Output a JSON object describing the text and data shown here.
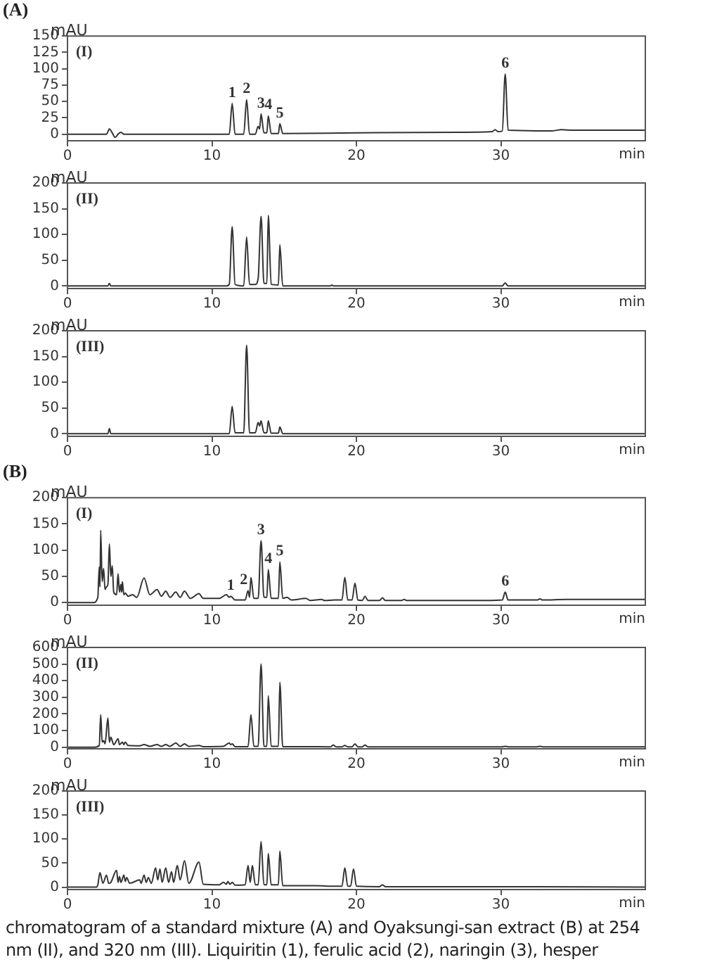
{
  "chart_data": [
    {
      "type": "line",
      "title": "(A)",
      "xlabel": "min",
      "ylabel": "mAU",
      "annotations": [
        "(I)",
        {
          "text": "1",
          "x": 11.4,
          "y": 47
        },
        {
          "text": "2",
          "x": 12.4,
          "y": 53
        },
        {
          "text": "3",
          "x": 13.4,
          "y": 31
        },
        {
          "text": "4",
          "x": 13.9,
          "y": 28
        },
        {
          "text": "5",
          "x": 14.7,
          "y": 16
        },
        {
          "text": "6",
          "x": 30.3,
          "y": 92
        }
      ],
      "xlim": [
        0,
        40
      ],
      "xticks": [
        0,
        10,
        20,
        30
      ],
      "ylim": [
        -10,
        150
      ],
      "yticks": [
        0,
        25,
        50,
        75,
        100,
        125,
        150
      ],
      "grid": false,
      "legend": false,
      "marker": "none",
      "line_style": "solid",
      "series": [
        {
          "color": "#333333",
          "x": [
            0,
            2.7,
            2.9,
            3.1,
            3.3,
            3.5,
            3.7,
            3.9,
            11.2,
            11.4,
            11.6,
            12.2,
            12.4,
            12.6,
            13.0,
            13.2,
            13.3,
            13.4,
            13.6,
            13.8,
            13.9,
            14.1,
            14.6,
            14.7,
            14.9,
            20,
            27,
            29.4,
            29.6,
            29.8,
            30.1,
            30.3,
            30.5,
            33.5,
            34.2,
            35,
            40
          ],
          "values": [
            0,
            0,
            8,
            2,
            -5,
            0,
            3,
            0,
            0,
            47,
            0,
            0,
            53,
            0,
            0,
            12,
            8,
            31,
            2,
            2,
            28,
            1,
            1,
            16,
            1,
            2,
            3,
            4,
            7,
            4,
            5,
            92,
            6,
            5,
            7,
            6,
            6
          ]
        }
      ]
    },
    {
      "type": "line",
      "xlabel": "min",
      "ylabel": "mAU",
      "annotations": [
        "(II)"
      ],
      "xlim": [
        0,
        40
      ],
      "xticks": [
        0,
        10,
        20,
        30
      ],
      "ylim": [
        -5,
        200
      ],
      "yticks": [
        0,
        50,
        100,
        150,
        200
      ],
      "grid": false,
      "legend": false,
      "marker": "none",
      "line_style": "solid",
      "series": [
        {
          "color": "#333333",
          "x": [
            0,
            2.8,
            2.9,
            3.0,
            11.0,
            11.2,
            11.4,
            11.6,
            12.2,
            12.4,
            12.6,
            13.0,
            13.2,
            13.4,
            13.6,
            13.8,
            13.9,
            14.1,
            14.6,
            14.7,
            14.9,
            18.2,
            18.3,
            18.4,
            30.1,
            30.3,
            30.5,
            40
          ],
          "values": [
            0,
            0,
            5,
            0,
            0,
            3,
            115,
            3,
            0,
            95,
            3,
            3,
            15,
            135,
            5,
            5,
            137,
            3,
            2,
            80,
            0,
            0,
            2,
            0,
            0,
            6,
            0,
            0
          ]
        }
      ]
    },
    {
      "type": "line",
      "xlabel": "min",
      "ylabel": "mAU",
      "annotations": [
        "(III)"
      ],
      "xlim": [
        0,
        40
      ],
      "xticks": [
        0,
        10,
        20,
        30
      ],
      "ylim": [
        -5,
        200
      ],
      "yticks": [
        0,
        50,
        100,
        150,
        200
      ],
      "grid": false,
      "legend": false,
      "marker": "none",
      "line_style": "solid",
      "series": [
        {
          "color": "#333333",
          "x": [
            0,
            2.8,
            2.9,
            3.0,
            11.2,
            11.4,
            11.6,
            12.2,
            12.4,
            12.6,
            13.0,
            13.2,
            13.3,
            13.4,
            13.6,
            13.8,
            13.9,
            14.1,
            14.6,
            14.7,
            14.9,
            40
          ],
          "values": [
            0,
            0,
            10,
            0,
            0,
            53,
            2,
            2,
            172,
            2,
            2,
            22,
            15,
            25,
            2,
            2,
            25,
            1,
            1,
            13,
            0,
            0
          ]
        }
      ]
    },
    {
      "type": "line",
      "title": "(B)",
      "xlabel": "min",
      "ylabel": "mAU",
      "annotations": [
        "(I)",
        {
          "text": "1",
          "x": 11.3,
          "y": 12
        },
        {
          "text": "2",
          "x": 12.2,
          "y": 23
        },
        {
          "text": "3",
          "x": 13.4,
          "y": 118
        },
        {
          "text": "4",
          "x": 13.9,
          "y": 63
        },
        {
          "text": "5",
          "x": 14.7,
          "y": 78
        },
        {
          "text": "6",
          "x": 30.3,
          "y": 20
        }
      ],
      "xlim": [
        0,
        40
      ],
      "xticks": [
        0,
        10,
        20,
        30
      ],
      "ylim": [
        -5,
        200
      ],
      "yticks": [
        0,
        50,
        100,
        150,
        200
      ],
      "grid": false,
      "legend": false,
      "marker": "none",
      "line_style": "solid",
      "series": [
        {
          "color": "#333333",
          "x": [
            0,
            1.8,
            2.1,
            2.2,
            2.25,
            2.3,
            2.4,
            2.5,
            2.6,
            2.7,
            2.8,
            2.9,
            3.0,
            3.1,
            3.2,
            3.4,
            3.5,
            3.6,
            3.7,
            3.75,
            3.8,
            3.9,
            4.0,
            4.2,
            4.5,
            4.8,
            5.3,
            5.7,
            6.2,
            6.5,
            6.8,
            7.1,
            7.5,
            7.8,
            8.1,
            8.5,
            9.1,
            9.4,
            10.5,
            11.0,
            11.2,
            11.3,
            11.6,
            12.3,
            12.5,
            12.6,
            12.7,
            12.9,
            13.2,
            13.4,
            13.6,
            13.8,
            13.9,
            14.1,
            14.6,
            14.7,
            14.9,
            15.2,
            15.5,
            16.5,
            16.8,
            17.6,
            17.8,
            18.5,
            19.0,
            19.2,
            19.4,
            19.7,
            19.9,
            20.1,
            20.4,
            20.6,
            20.8,
            21.6,
            21.8,
            22.0,
            23.1,
            23.3,
            23.5,
            29,
            30.1,
            30.3,
            30.5,
            32.5,
            32.7,
            32.9,
            34.5,
            40
          ],
          "values": [
            0,
            0,
            10,
            68,
            30,
            138,
            40,
            65,
            25,
            30,
            35,
            112,
            50,
            70,
            20,
            15,
            55,
            20,
            35,
            20,
            40,
            15,
            18,
            12,
            15,
            10,
            47,
            15,
            25,
            12,
            22,
            10,
            20,
            10,
            22,
            8,
            17,
            8,
            8,
            15,
            10,
            12,
            5,
            5,
            23,
            10,
            48,
            8,
            8,
            118,
            10,
            10,
            63,
            8,
            8,
            78,
            8,
            10,
            5,
            8,
            4,
            6,
            4,
            5,
            5,
            48,
            5,
            5,
            37,
            5,
            4,
            12,
            4,
            4,
            9,
            4,
            4,
            6,
            4,
            4,
            5,
            20,
            5,
            5,
            7,
            5,
            6,
            6
          ]
        }
      ]
    },
    {
      "type": "line",
      "xlabel": "min",
      "ylabel": "mAU",
      "annotations": [
        "(II)"
      ],
      "xlim": [
        0,
        40
      ],
      "xticks": [
        0,
        10,
        20,
        30
      ],
      "ylim": [
        -10,
        600
      ],
      "yticks": [
        0,
        100,
        200,
        300,
        400,
        500,
        600
      ],
      "grid": false,
      "legend": false,
      "marker": "none",
      "line_style": "solid",
      "series": [
        {
          "color": "#333333",
          "x": [
            0,
            1.9,
            2.2,
            2.3,
            2.4,
            2.5,
            2.6,
            2.8,
            2.9,
            3.0,
            3.2,
            3.5,
            3.6,
            3.8,
            3.9,
            4.0,
            4.2,
            5.0,
            5.3,
            5.7,
            6.2,
            6.5,
            6.8,
            7.1,
            7.5,
            7.8,
            8.1,
            8.4,
            9.1,
            9.4,
            10.8,
            11.2,
            11.3,
            11.4,
            11.6,
            12.5,
            12.7,
            12.9,
            13.2,
            13.4,
            13.6,
            13.8,
            13.9,
            14.1,
            14.6,
            14.7,
            14.9,
            16.5,
            18.2,
            18.4,
            18.6,
            19.0,
            19.2,
            19.4,
            19.7,
            19.9,
            20.1,
            20.4,
            20.6,
            20.8,
            30.1,
            30.3,
            30.5,
            32.5,
            32.7,
            32.9,
            40
          ],
          "values": [
            0,
            0,
            10,
            195,
            30,
            40,
            20,
            175,
            30,
            60,
            15,
            50,
            15,
            30,
            15,
            30,
            10,
            8,
            15,
            5,
            15,
            5,
            15,
            5,
            25,
            5,
            20,
            5,
            10,
            3,
            5,
            25,
            15,
            20,
            3,
            3,
            195,
            5,
            5,
            500,
            5,
            5,
            310,
            5,
            5,
            390,
            3,
            3,
            2,
            12,
            2,
            2,
            10,
            2,
            2,
            20,
            2,
            2,
            12,
            2,
            2,
            5,
            2,
            2,
            5,
            2,
            2
          ]
        }
      ]
    },
    {
      "type": "line",
      "xlabel": "min",
      "ylabel": "mAU",
      "annotations": [
        "(III)",
        "chromatogram of a standard mixture (A) and Oyaksungi-san extract (B) at 254",
        "nm (II), and 320 nm (III). Liquiritin (1), ferulic acid (2), naringin (3), hesper"
      ],
      "xlim": [
        0,
        40
      ],
      "xticks": [
        0,
        10,
        20,
        30
      ],
      "ylim": [
        -5,
        200
      ],
      "yticks": [
        0,
        50,
        100,
        150,
        200
      ],
      "grid": false,
      "legend": false,
      "marker": "none",
      "line_style": "solid",
      "series": [
        {
          "color": "#333333",
          "x": [
            0,
            2.0,
            2.1,
            2.25,
            2.45,
            2.7,
            2.85,
            3.0,
            3.4,
            3.5,
            3.6,
            3.7,
            3.9,
            4.0,
            4.1,
            4.3,
            5.0,
            5.1,
            5.3,
            5.45,
            5.6,
            5.8,
            6.1,
            6.25,
            6.4,
            6.55,
            6.8,
            7.0,
            7.2,
            7.35,
            7.6,
            7.8,
            8.1,
            8.4,
            9.1,
            9.4,
            10.5,
            10.8,
            11.0,
            11.1,
            11.25,
            11.4,
            11.6,
            12.3,
            12.5,
            12.65,
            12.8,
            13.0,
            13.2,
            13.4,
            13.6,
            13.8,
            13.9,
            14.1,
            14.6,
            14.7,
            14.9,
            16.5,
            17.2,
            18.5,
            19.0,
            19.2,
            19.4,
            19.6,
            19.8,
            20.0,
            21.6,
            21.8,
            22.0,
            30,
            40
          ],
          "values": [
            0,
            0,
            5,
            30,
            8,
            25,
            8,
            10,
            35,
            10,
            22,
            10,
            25,
            12,
            20,
            8,
            15,
            8,
            25,
            10,
            20,
            8,
            40,
            15,
            38,
            10,
            40,
            10,
            32,
            10,
            45,
            15,
            55,
            8,
            52,
            6,
            5,
            10,
            6,
            12,
            6,
            10,
            4,
            5,
            45,
            10,
            45,
            5,
            5,
            95,
            5,
            5,
            70,
            5,
            5,
            75,
            3,
            3,
            3,
            2,
            2,
            40,
            2,
            2,
            38,
            2,
            1,
            5,
            1,
            1,
            0
          ]
        }
      ]
    }
  ]
}
